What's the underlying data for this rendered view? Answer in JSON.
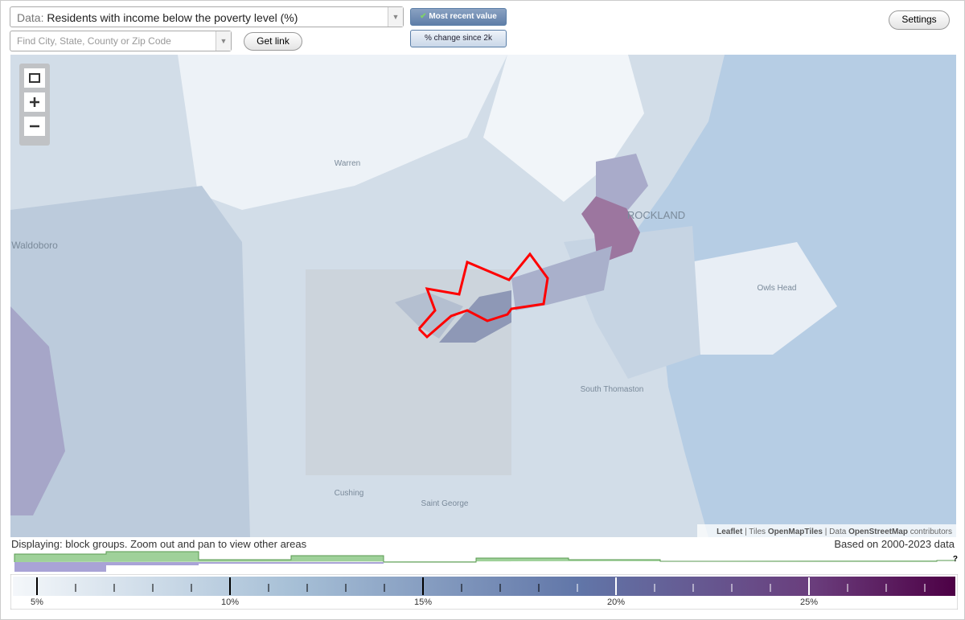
{
  "controls": {
    "data_prefix": "Data:",
    "data_value": "Residents with income below the poverty level (%)",
    "search_placeholder": "Find City, State, County or Zip Code",
    "get_link": "Get link",
    "mode_recent": "Most recent value",
    "mode_change": "% change since 2k",
    "settings": "Settings"
  },
  "map": {
    "labels": [
      "Warren",
      "Waldoboro",
      "ROCKLAND",
      "Owls Head",
      "South Thomaston",
      "Cushing",
      "Saint George"
    ],
    "attribution": [
      "Leaflet",
      "| Tiles",
      "OpenMapTiles",
      "| Data",
      "OpenStreetMap",
      "contributors"
    ]
  },
  "footer": {
    "displaying": "Displaying: block groups. Zoom out and pan to view other areas",
    "based_on": "Based on 2000-2023 data",
    "help": "?"
  },
  "legend": {
    "labels": [
      "5%",
      "10%",
      "15%",
      "20%",
      "25%"
    ]
  }
}
